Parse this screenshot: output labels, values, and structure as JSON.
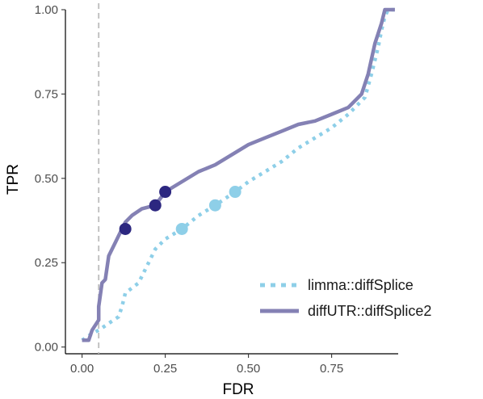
{
  "chart_data": {
    "type": "line",
    "xlabel": "FDR",
    "ylabel": "TPR",
    "xlim": [
      -0.05,
      0.95
    ],
    "ylim": [
      -0.02,
      1.0
    ],
    "x_ticks": [
      0.0,
      0.25,
      0.5,
      0.75
    ],
    "x_tick_labels": [
      "0.00",
      "0.25",
      "0.50",
      "0.75"
    ],
    "y_ticks": [
      0.0,
      0.25,
      0.5,
      0.75,
      1.0
    ],
    "y_tick_labels": [
      "0.00",
      "0.25",
      "0.50",
      "0.75",
      "1.00"
    ],
    "reference_line_x": 0.05,
    "grid": false,
    "legend_position": "bottom-right",
    "series": [
      {
        "name": "limma::diffSplice",
        "color": "#8ecfe8",
        "style": "dotted",
        "x": [
          0.0,
          0.03,
          0.05,
          0.08,
          0.11,
          0.12,
          0.13,
          0.13,
          0.17,
          0.2,
          0.22,
          0.25,
          0.3,
          0.35,
          0.4,
          0.46,
          0.5,
          0.55,
          0.6,
          0.65,
          0.7,
          0.75,
          0.8,
          0.85,
          0.87,
          0.89,
          0.9,
          0.91,
          0.92,
          0.94
        ],
        "y": [
          0.02,
          0.04,
          0.05,
          0.07,
          0.09,
          0.12,
          0.16,
          0.16,
          0.19,
          0.25,
          0.29,
          0.32,
          0.35,
          0.39,
          0.42,
          0.46,
          0.49,
          0.52,
          0.55,
          0.59,
          0.62,
          0.65,
          0.69,
          0.74,
          0.81,
          0.89,
          0.94,
          0.98,
          1.0,
          1.0
        ],
        "markers": [
          [
            0.3,
            0.35
          ],
          [
            0.4,
            0.42
          ],
          [
            0.46,
            0.46
          ]
        ]
      },
      {
        "name": "diffUTR::diffSplice2",
        "color": "#8481b4",
        "style": "solid",
        "x": [
          0.0,
          0.02,
          0.03,
          0.05,
          0.05,
          0.06,
          0.07,
          0.08,
          0.1,
          0.11,
          0.12,
          0.13,
          0.15,
          0.18,
          0.22,
          0.25,
          0.3,
          0.35,
          0.4,
          0.45,
          0.5,
          0.55,
          0.6,
          0.65,
          0.7,
          0.75,
          0.8,
          0.84,
          0.86,
          0.88,
          0.9,
          0.91,
          0.94
        ],
        "y": [
          0.02,
          0.02,
          0.05,
          0.08,
          0.12,
          0.19,
          0.2,
          0.27,
          0.31,
          0.33,
          0.35,
          0.37,
          0.39,
          0.41,
          0.42,
          0.46,
          0.49,
          0.52,
          0.54,
          0.57,
          0.6,
          0.62,
          0.64,
          0.66,
          0.67,
          0.69,
          0.71,
          0.75,
          0.81,
          0.9,
          0.96,
          1.0,
          1.0
        ],
        "markers": [
          [
            0.13,
            0.35
          ],
          [
            0.22,
            0.42
          ],
          [
            0.25,
            0.46
          ]
        ]
      }
    ],
    "marker_colors": {
      "limma::diffSplice": "#8ecfe8",
      "diffUTR::diffSplice2": "#2c2780"
    }
  }
}
